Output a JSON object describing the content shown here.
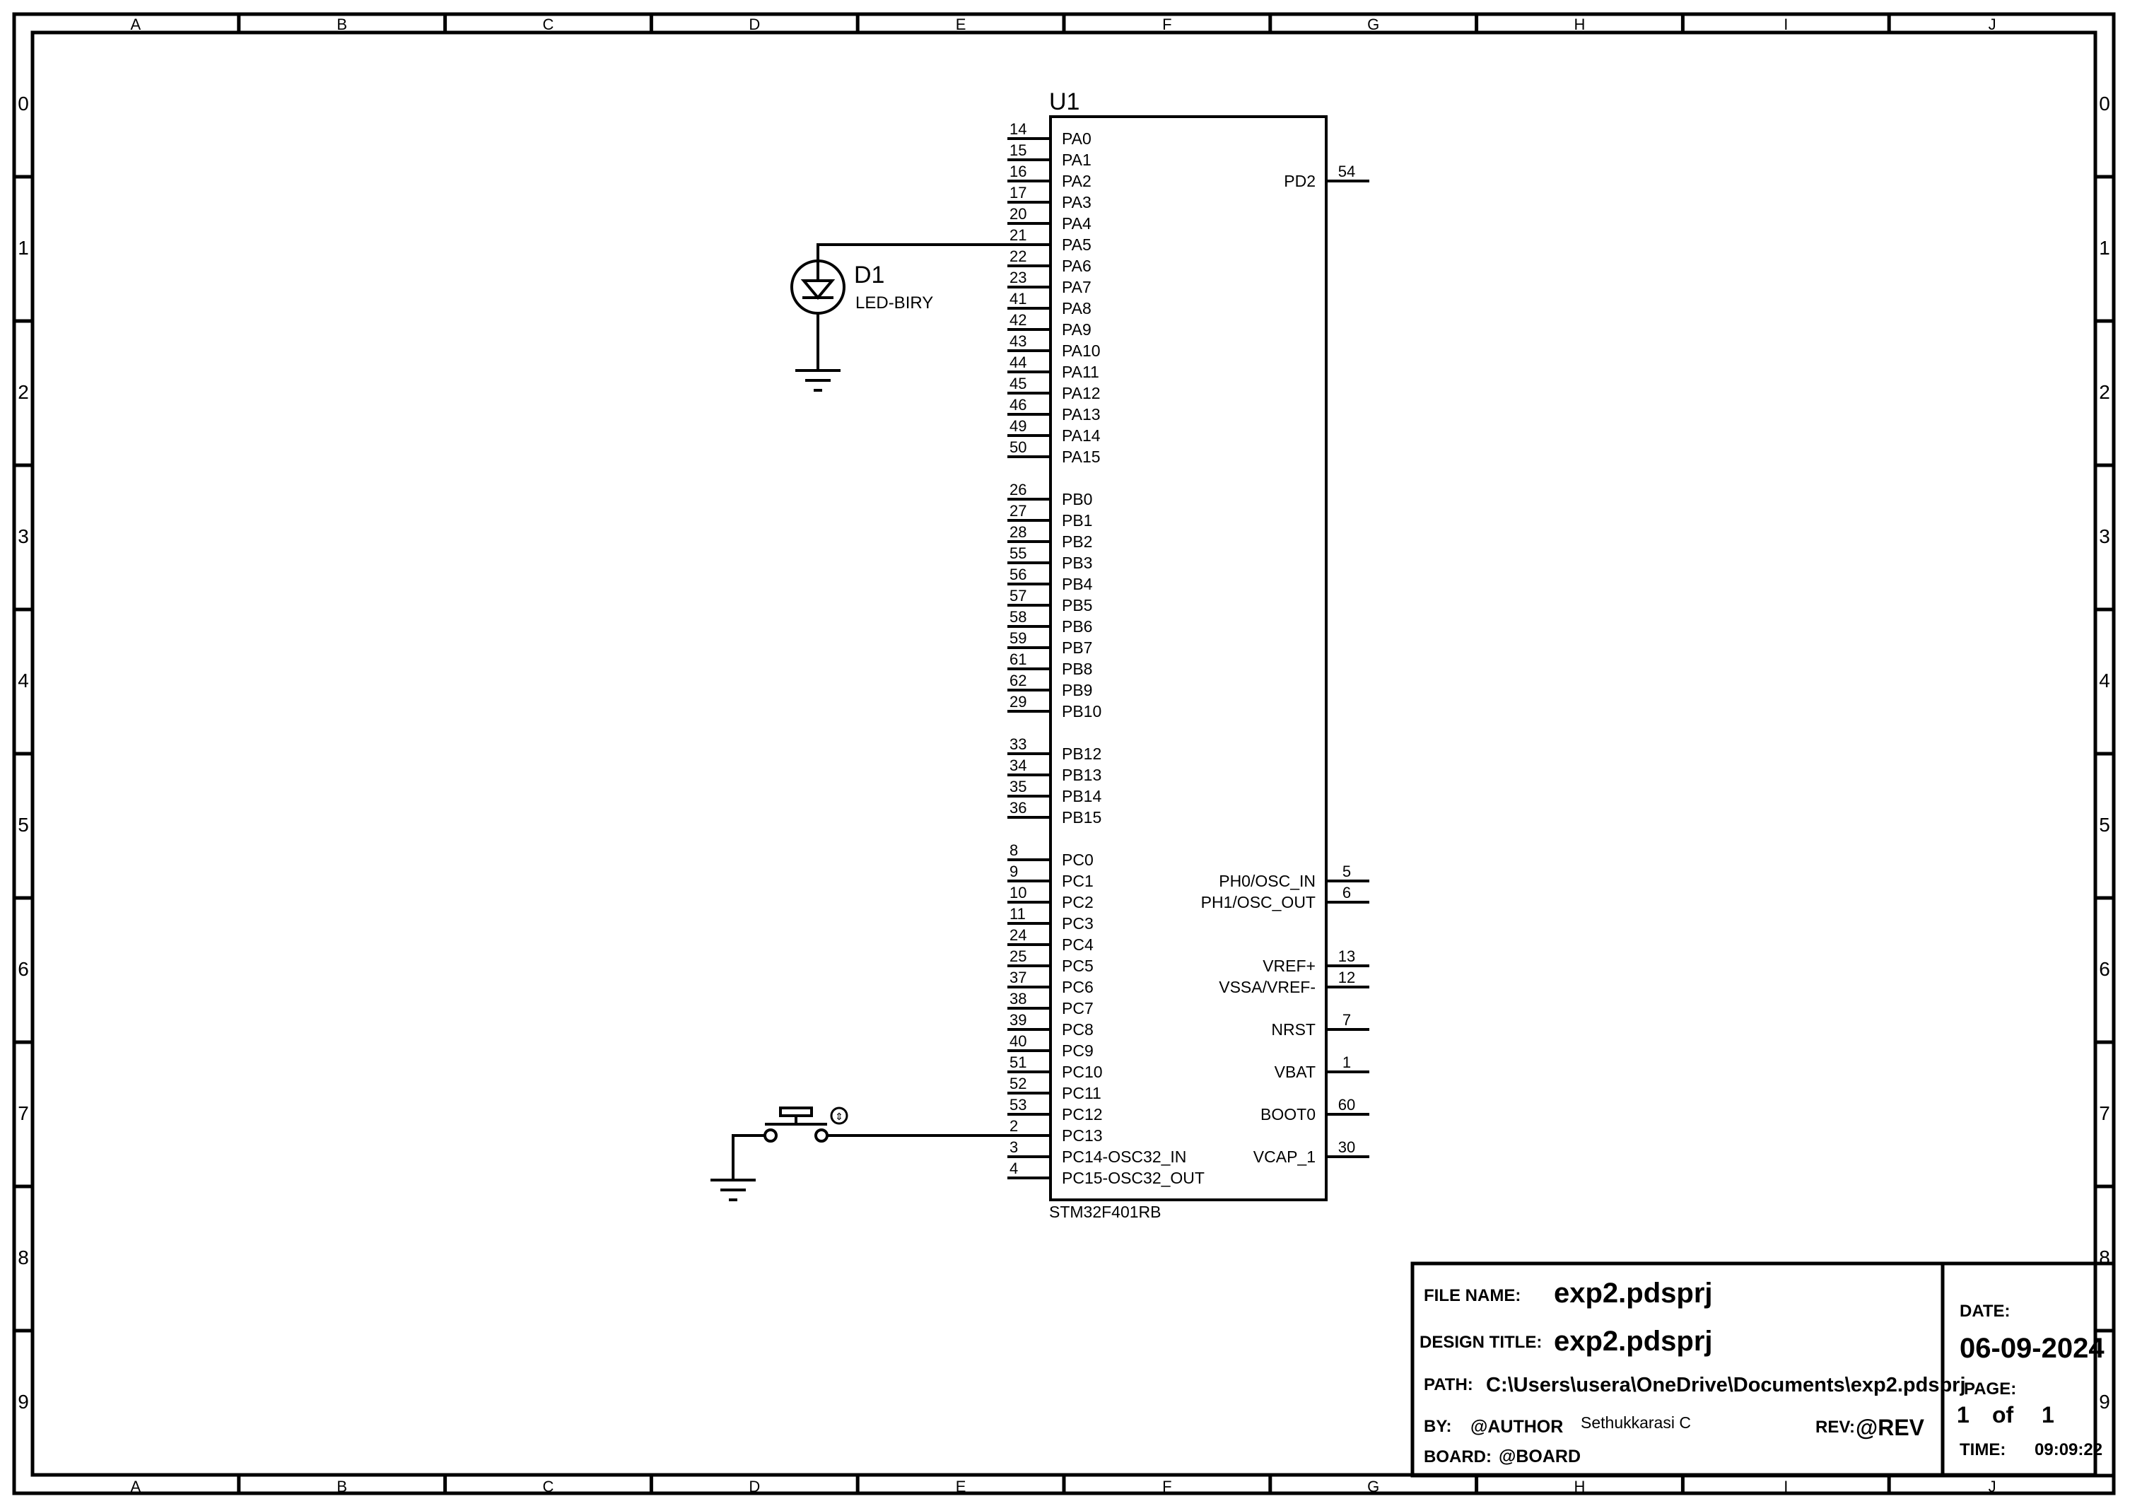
{
  "border": {
    "columns": [
      "A",
      "B",
      "C",
      "D",
      "E",
      "F",
      "G",
      "H",
      "I",
      "J"
    ],
    "rows": [
      "0",
      "1",
      "2",
      "3",
      "4",
      "5",
      "6",
      "7",
      "8",
      "9"
    ]
  },
  "ic": {
    "ref": "U1",
    "part": "STM32F401RB",
    "left_pins": [
      {
        "num": "14",
        "name": "PA0"
      },
      {
        "num": "15",
        "name": "PA1"
      },
      {
        "num": "16",
        "name": "PA2"
      },
      {
        "num": "17",
        "name": "PA3"
      },
      {
        "num": "20",
        "name": "PA4"
      },
      {
        "num": "21",
        "name": "PA5"
      },
      {
        "num": "22",
        "name": "PA6"
      },
      {
        "num": "23",
        "name": "PA7"
      },
      {
        "num": "41",
        "name": "PA8"
      },
      {
        "num": "42",
        "name": "PA9"
      },
      {
        "num": "43",
        "name": "PA10"
      },
      {
        "num": "44",
        "name": "PA11"
      },
      {
        "num": "45",
        "name": "PA12"
      },
      {
        "num": "46",
        "name": "PA13"
      },
      {
        "num": "49",
        "name": "PA14"
      },
      {
        "num": "50",
        "name": "PA15"
      },
      null,
      {
        "num": "26",
        "name": "PB0"
      },
      {
        "num": "27",
        "name": "PB1"
      },
      {
        "num": "28",
        "name": "PB2"
      },
      {
        "num": "55",
        "name": "PB3"
      },
      {
        "num": "56",
        "name": "PB4"
      },
      {
        "num": "57",
        "name": "PB5"
      },
      {
        "num": "58",
        "name": "PB6"
      },
      {
        "num": "59",
        "name": "PB7"
      },
      {
        "num": "61",
        "name": "PB8"
      },
      {
        "num": "62",
        "name": "PB9"
      },
      {
        "num": "29",
        "name": "PB10"
      },
      null,
      {
        "num": "33",
        "name": "PB12"
      },
      {
        "num": "34",
        "name": "PB13"
      },
      {
        "num": "35",
        "name": "PB14"
      },
      {
        "num": "36",
        "name": "PB15"
      },
      null,
      {
        "num": "8",
        "name": "PC0"
      },
      {
        "num": "9",
        "name": "PC1"
      },
      {
        "num": "10",
        "name": "PC2"
      },
      {
        "num": "11",
        "name": "PC3"
      },
      {
        "num": "24",
        "name": "PC4"
      },
      {
        "num": "25",
        "name": "PC5"
      },
      {
        "num": "37",
        "name": "PC6"
      },
      {
        "num": "38",
        "name": "PC7"
      },
      {
        "num": "39",
        "name": "PC8"
      },
      {
        "num": "40",
        "name": "PC9"
      },
      {
        "num": "51",
        "name": "PC10"
      },
      {
        "num": "52",
        "name": "PC11"
      },
      {
        "num": "53",
        "name": "PC12"
      },
      {
        "num": "2",
        "name": "PC13"
      },
      {
        "num": "3",
        "name": "PC14-OSC32_IN"
      },
      {
        "num": "4",
        "name": "PC15-OSC32_OUT"
      }
    ],
    "right_pins": [
      {
        "num": "54",
        "name": "PD2",
        "row": 2
      },
      {
        "num": "5",
        "name": "PH0/OSC_IN",
        "row": 35
      },
      {
        "num": "6",
        "name": "PH1/OSC_OUT",
        "row": 36
      },
      {
        "num": "13",
        "name": "VREF+",
        "row": 39
      },
      {
        "num": "12",
        "name": "VSSA/VREF-",
        "row": 40
      },
      {
        "num": "7",
        "name": "NRST",
        "row": 42
      },
      {
        "num": "1",
        "name": "VBAT",
        "row": 44
      },
      {
        "num": "60",
        "name": "BOOT0",
        "row": 46
      },
      {
        "num": "30",
        "name": "VCAP_1",
        "row": 48
      }
    ]
  },
  "led": {
    "ref": "D1",
    "value": "LED-BIRY"
  },
  "title_block": {
    "file_name_label": "FILE NAME:",
    "file_name": "exp2.pdsprj",
    "design_title_label": "DESIGN TITLE:",
    "design_title": "exp2.pdsprj",
    "path_label": "PATH:",
    "path": "C:\\Users\\usera\\OneDrive\\Documents\\exp2.pdsprj",
    "by_label": "BY:",
    "author": "@AUTHOR",
    "author_name": "Sethukkarasi C",
    "rev_label": "REV:",
    "rev": "@REV",
    "board_label": "BOARD:",
    "board": "@BOARD",
    "date_label": "DATE:",
    "date": "06-09-2024",
    "page_label": "PAGE:",
    "page": "1",
    "of_label": "of",
    "page_total": "1",
    "time_label": "TIME:",
    "time": "09:09:22"
  }
}
